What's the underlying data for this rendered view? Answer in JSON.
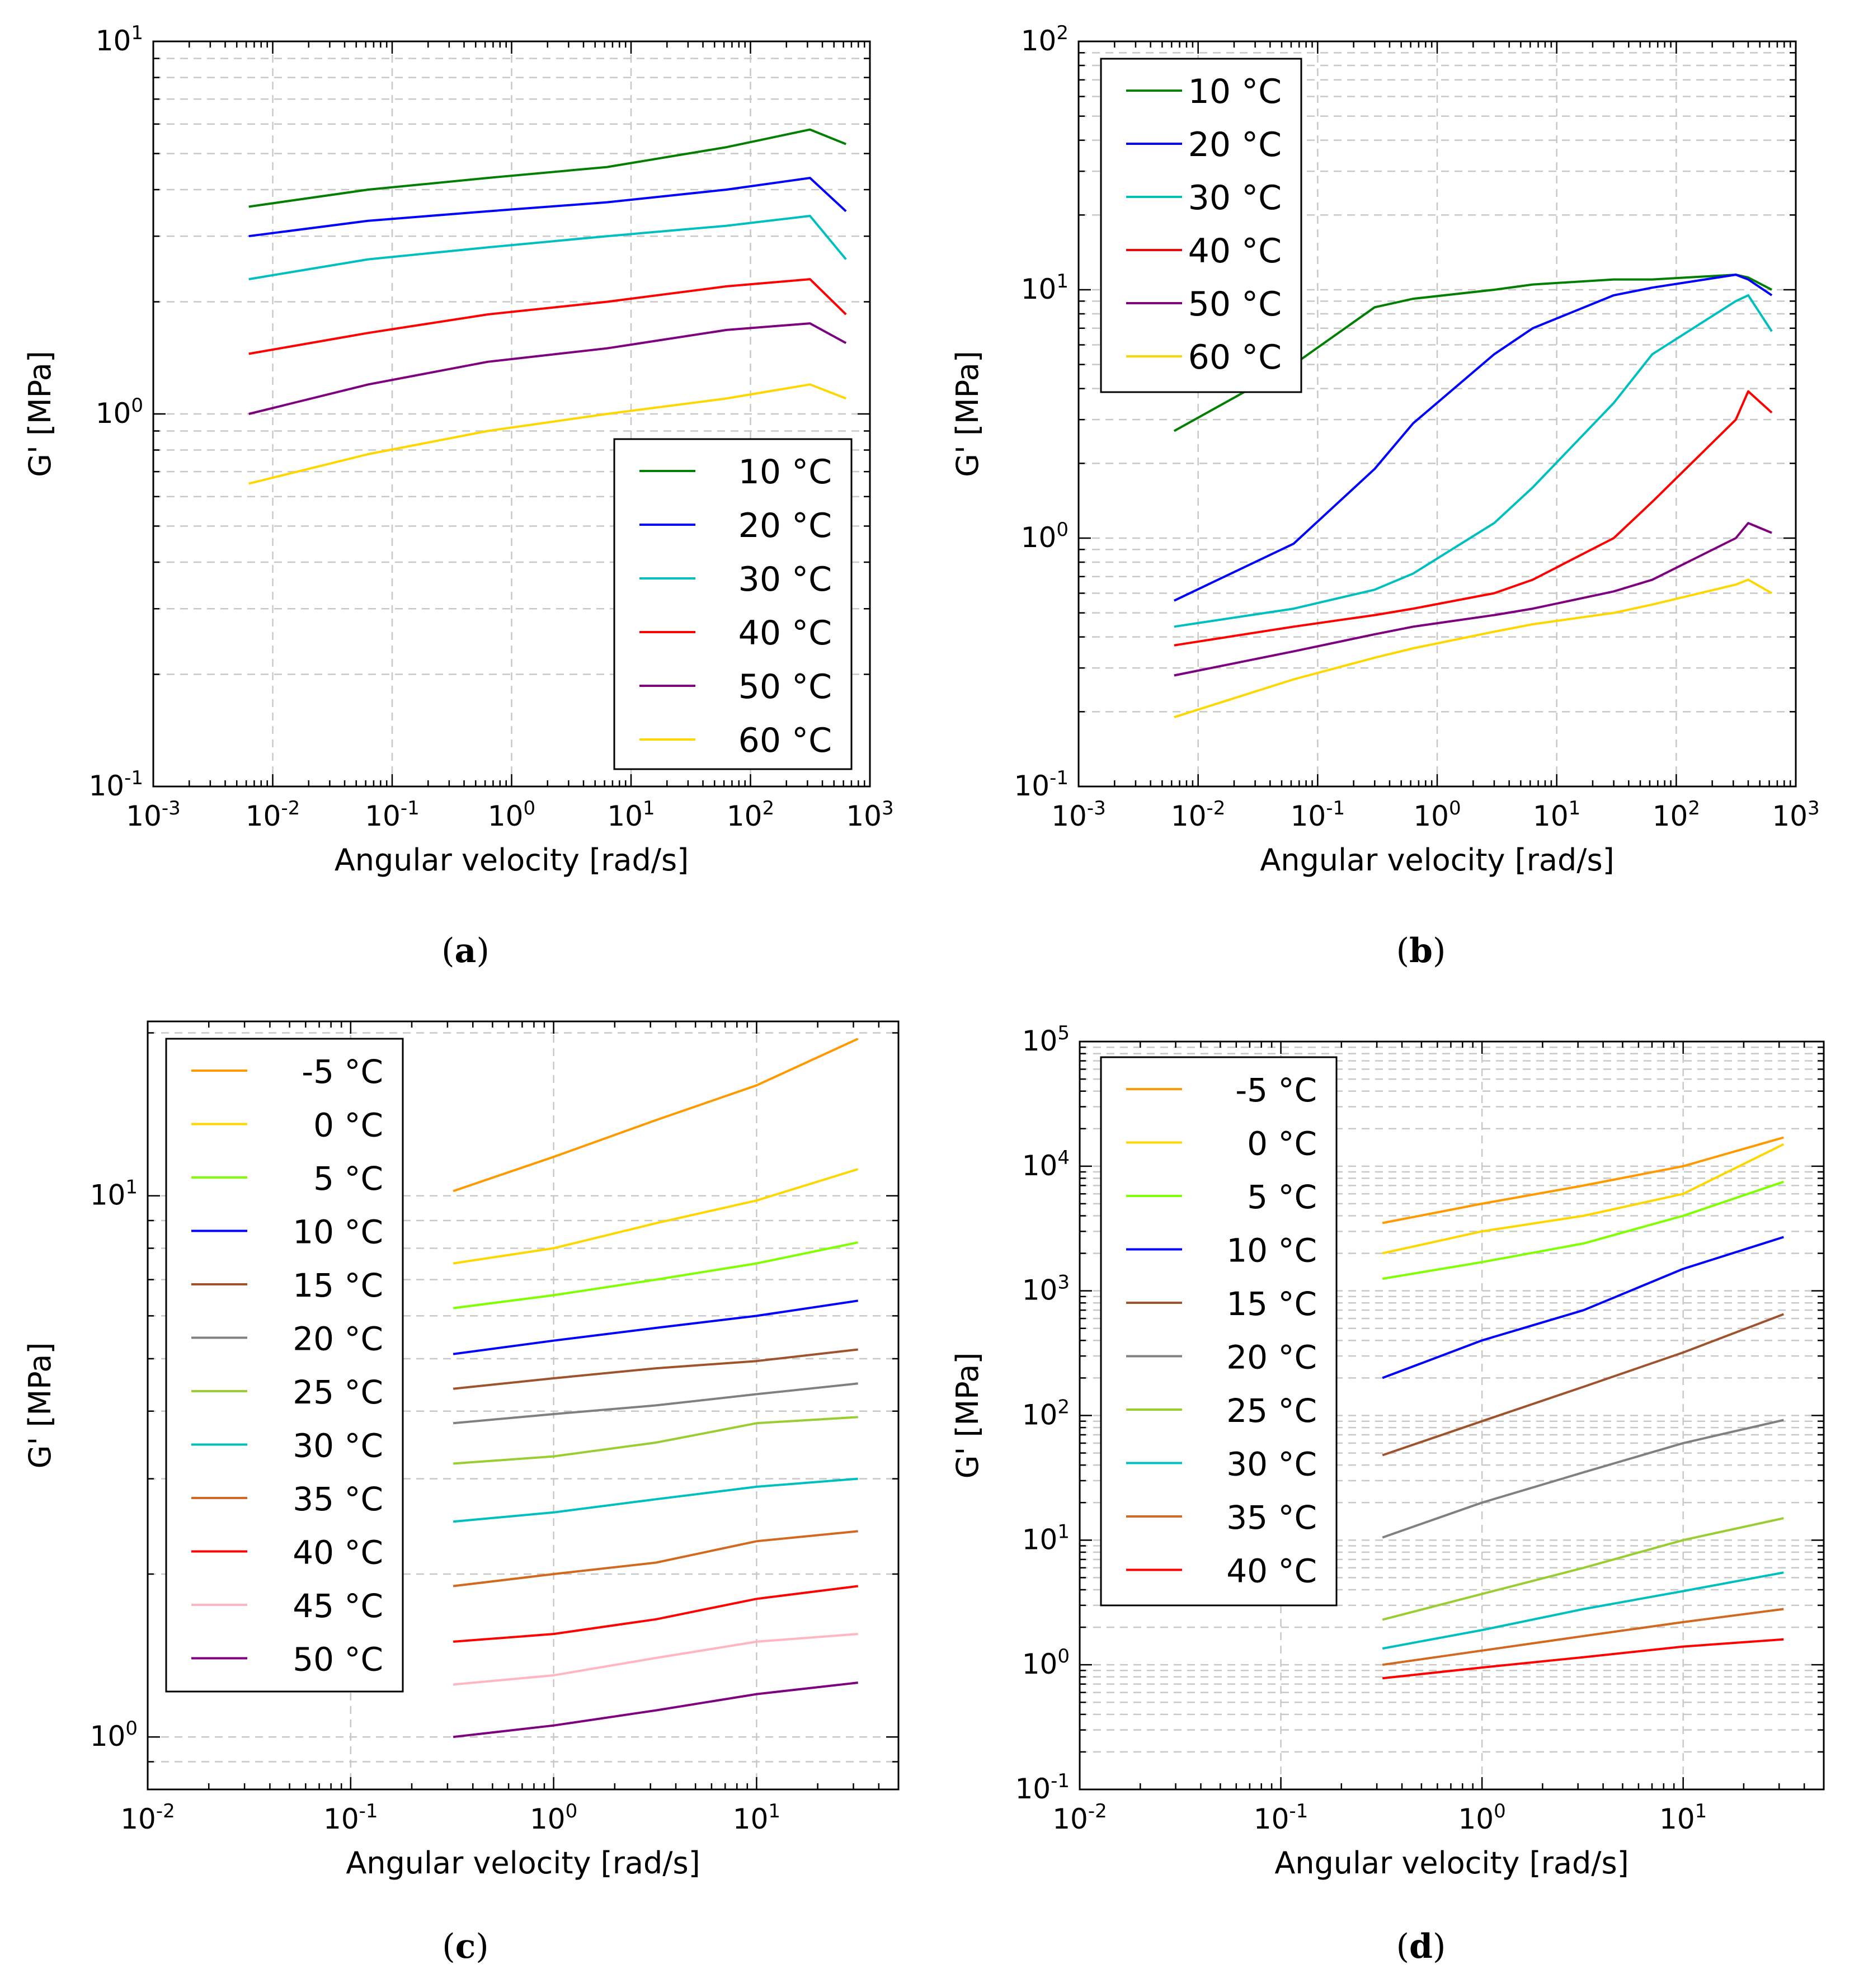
{
  "figure": {
    "captions": [
      "(a)",
      "(b)",
      "(c)",
      "(d)"
    ]
  },
  "chart_data": [
    {
      "id": "a",
      "type": "line",
      "caption": "(a)",
      "xlabel": "Angular velocity [rad/s]",
      "ylabel": "G' [MPa]",
      "xscale": "log",
      "yscale": "log",
      "xlim": [
        0.001,
        1000
      ],
      "ylim": [
        0.1,
        10
      ],
      "xticks": [
        {
          "base": "10",
          "exp": "-3"
        },
        {
          "base": "10",
          "exp": "-2"
        },
        {
          "base": "10",
          "exp": "-1"
        },
        {
          "base": "10",
          "exp": "0"
        },
        {
          "base": "10",
          "exp": "1"
        },
        {
          "base": "10",
          "exp": "2"
        },
        {
          "base": "10",
          "exp": "3"
        }
      ],
      "yticks": [
        {
          "base": "10",
          "exp": "-1"
        },
        {
          "base": "10",
          "exp": "0"
        },
        {
          "base": "10",
          "exp": "1"
        }
      ],
      "grid": true,
      "legend_position": "lower-right",
      "x": [
        0.0063,
        0.063,
        0.63,
        6.3,
        63,
        315,
        630
      ],
      "series": [
        {
          "name": "10 °C",
          "color": "#007f00",
          "values": [
            3.6,
            4.0,
            4.3,
            4.6,
            5.2,
            5.8,
            5.3
          ]
        },
        {
          "name": "20 °C",
          "color": "#0000ff",
          "values": [
            3.0,
            3.3,
            3.5,
            3.7,
            4.0,
            4.3,
            3.5
          ]
        },
        {
          "name": "30 °C",
          "color": "#00bfbf",
          "values": [
            2.3,
            2.6,
            2.8,
            3.0,
            3.2,
            3.4,
            2.6
          ]
        },
        {
          "name": "40 °C",
          "color": "#ff0000",
          "values": [
            1.45,
            1.65,
            1.85,
            2.0,
            2.2,
            2.3,
            1.85
          ]
        },
        {
          "name": "50 °C",
          "color": "#7f007f",
          "values": [
            1.0,
            1.2,
            1.38,
            1.5,
            1.68,
            1.75,
            1.55
          ]
        },
        {
          "name": "60 °C",
          "color": "#ffd700",
          "values": [
            0.65,
            0.78,
            0.9,
            1.0,
            1.1,
            1.2,
            1.1
          ]
        }
      ]
    },
    {
      "id": "b",
      "type": "line",
      "caption": "(b)",
      "xlabel": "Angular velocity [rad/s]",
      "ylabel": "G' [MPa]",
      "xscale": "log",
      "yscale": "log",
      "xlim": [
        0.001,
        1000
      ],
      "ylim": [
        0.1,
        100
      ],
      "xticks": [
        {
          "base": "10",
          "exp": "-3"
        },
        {
          "base": "10",
          "exp": "-2"
        },
        {
          "base": "10",
          "exp": "-1"
        },
        {
          "base": "10",
          "exp": "0"
        },
        {
          "base": "10",
          "exp": "1"
        },
        {
          "base": "10",
          "exp": "2"
        },
        {
          "base": "10",
          "exp": "3"
        }
      ],
      "yticks": [
        {
          "base": "10",
          "exp": "-1"
        },
        {
          "base": "10",
          "exp": "0"
        },
        {
          "base": "10",
          "exp": "1"
        },
        {
          "base": "10",
          "exp": "2"
        }
      ],
      "grid": true,
      "legend_position": "upper-left",
      "x": [
        0.0063,
        0.063,
        0.3,
        0.63,
        3.0,
        6.3,
        30,
        63,
        315,
        400,
        630
      ],
      "series": [
        {
          "name": "10 °C",
          "color": "#007f00",
          "values": [
            2.7,
            5.0,
            8.5,
            9.2,
            10.0,
            10.5,
            11.0,
            11.0,
            11.5,
            11.2,
            10.0
          ]
        },
        {
          "name": "20 °C",
          "color": "#0000ff",
          "values": [
            0.56,
            0.95,
            1.9,
            2.9,
            5.5,
            7.0,
            9.5,
            10.2,
            11.5,
            11.0,
            9.5
          ]
        },
        {
          "name": "30 °C",
          "color": "#00bfbf",
          "values": [
            0.44,
            0.52,
            0.62,
            0.72,
            1.15,
            1.6,
            3.5,
            5.5,
            9.0,
            9.5,
            6.8
          ]
        },
        {
          "name": "40 °C",
          "color": "#ff0000",
          "values": [
            0.37,
            0.44,
            0.49,
            0.52,
            0.6,
            0.68,
            1.0,
            1.4,
            3.0,
            3.9,
            3.2
          ]
        },
        {
          "name": "50 °C",
          "color": "#7f007f",
          "values": [
            0.28,
            0.35,
            0.41,
            0.44,
            0.49,
            0.52,
            0.61,
            0.68,
            1.0,
            1.15,
            1.05
          ]
        },
        {
          "name": "60 °C",
          "color": "#ffd700",
          "values": [
            0.19,
            0.27,
            0.33,
            0.36,
            0.42,
            0.45,
            0.5,
            0.54,
            0.65,
            0.68,
            0.6
          ]
        }
      ]
    },
    {
      "id": "c",
      "type": "line",
      "caption": "(c)",
      "xlabel": "Angular velocity [rad/s]",
      "ylabel": "G' [MPa]",
      "xscale": "log",
      "yscale": "log",
      "xlim": [
        0.01,
        50
      ],
      "ylim": [
        0.8,
        21
      ],
      "xticks": [
        {
          "base": "10",
          "exp": "-2"
        },
        {
          "base": "10",
          "exp": "-1"
        },
        {
          "base": "10",
          "exp": "0"
        },
        {
          "base": "10",
          "exp": "1"
        }
      ],
      "yticks": [
        {
          "base": "10",
          "exp": "0"
        },
        {
          "base": "10",
          "exp": "1"
        }
      ],
      "grid": true,
      "legend_position": "upper-left",
      "x": [
        0.32,
        1.0,
        3.2,
        10,
        31.6
      ],
      "series": [
        {
          "name": "-5 °C",
          "color": "#ff9900",
          "values": [
            10.2,
            11.8,
            13.8,
            16.0,
            19.5
          ]
        },
        {
          "name": "0 °C",
          "color": "#ffd700",
          "values": [
            7.5,
            8.0,
            8.9,
            9.8,
            11.2
          ]
        },
        {
          "name": "5 °C",
          "color": "#7fff00",
          "values": [
            6.2,
            6.55,
            7.0,
            7.5,
            8.2
          ]
        },
        {
          "name": "10 °C",
          "color": "#0000ff",
          "values": [
            5.1,
            5.4,
            5.7,
            6.0,
            6.4
          ]
        },
        {
          "name": "15 °C",
          "color": "#a0522d",
          "values": [
            4.4,
            4.6,
            4.8,
            4.95,
            5.2
          ]
        },
        {
          "name": "20 °C",
          "color": "#808080",
          "values": [
            3.8,
            3.95,
            4.1,
            4.3,
            4.5
          ]
        },
        {
          "name": "25 °C",
          "color": "#9acd32",
          "values": [
            3.2,
            3.3,
            3.5,
            3.8,
            3.9
          ]
        },
        {
          "name": "30 °C",
          "color": "#00bfbf",
          "values": [
            2.5,
            2.6,
            2.75,
            2.9,
            3.0
          ]
        },
        {
          "name": "35 °C",
          "color": "#d2691e",
          "values": [
            1.9,
            2.0,
            2.1,
            2.3,
            2.4
          ]
        },
        {
          "name": "40 °C",
          "color": "#ff0000",
          "values": [
            1.5,
            1.55,
            1.65,
            1.8,
            1.9
          ]
        },
        {
          "name": "45 °C",
          "color": "#ffb6c1",
          "values": [
            1.25,
            1.3,
            1.4,
            1.5,
            1.55
          ]
        },
        {
          "name": "50 °C",
          "color": "#7f007f",
          "values": [
            1.0,
            1.05,
            1.12,
            1.2,
            1.26
          ]
        }
      ]
    },
    {
      "id": "d",
      "type": "line",
      "caption": "(d)",
      "xlabel": "Angular velocity [rad/s]",
      "ylabel": "G' [MPa]",
      "xscale": "log",
      "yscale": "log",
      "xlim": [
        0.01,
        50
      ],
      "ylim": [
        0.1,
        100000
      ],
      "xticks": [
        {
          "base": "10",
          "exp": "-2"
        },
        {
          "base": "10",
          "exp": "-1"
        },
        {
          "base": "10",
          "exp": "0"
        },
        {
          "base": "10",
          "exp": "1"
        }
      ],
      "yticks": [
        {
          "base": "10",
          "exp": "-1"
        },
        {
          "base": "10",
          "exp": "0"
        },
        {
          "base": "10",
          "exp": "1"
        },
        {
          "base": "10",
          "exp": "2"
        },
        {
          "base": "10",
          "exp": "3"
        },
        {
          "base": "10",
          "exp": "4"
        },
        {
          "base": "10",
          "exp": "5"
        }
      ],
      "grid": true,
      "legend_position": "upper-left",
      "x": [
        0.32,
        1.0,
        3.2,
        10,
        31.6
      ],
      "series": [
        {
          "name": "-5 °C",
          "color": "#ff9900",
          "values": [
            3500,
            5000,
            7000,
            10000,
            17000
          ]
        },
        {
          "name": "0 °C",
          "color": "#ffd700",
          "values": [
            2000,
            3000,
            4000,
            6000,
            15000
          ]
        },
        {
          "name": "5 °C",
          "color": "#7fff00",
          "values": [
            1250,
            1700,
            2400,
            4000,
            7500
          ]
        },
        {
          "name": "10 °C",
          "color": "#0000ff",
          "values": [
            200,
            400,
            700,
            1500,
            2700
          ]
        },
        {
          "name": "15 °C",
          "color": "#a0522d",
          "values": [
            48,
            90,
            170,
            320,
            650
          ]
        },
        {
          "name": "20 °C",
          "color": "#808080",
          "values": [
            10.5,
            20,
            35,
            60,
            92
          ]
        },
        {
          "name": "25 °C",
          "color": "#9acd32",
          "values": [
            2.3,
            3.7,
            6.0,
            10.0,
            15.0
          ]
        },
        {
          "name": "30 °C",
          "color": "#00bfbf",
          "values": [
            1.35,
            1.9,
            2.8,
            3.9,
            5.5
          ]
        },
        {
          "name": "35 °C",
          "color": "#d2691e",
          "values": [
            1.0,
            1.3,
            1.7,
            2.2,
            2.8
          ]
        },
        {
          "name": "40 °C",
          "color": "#ff0000",
          "values": [
            0.78,
            0.95,
            1.15,
            1.4,
            1.6
          ]
        }
      ]
    }
  ]
}
